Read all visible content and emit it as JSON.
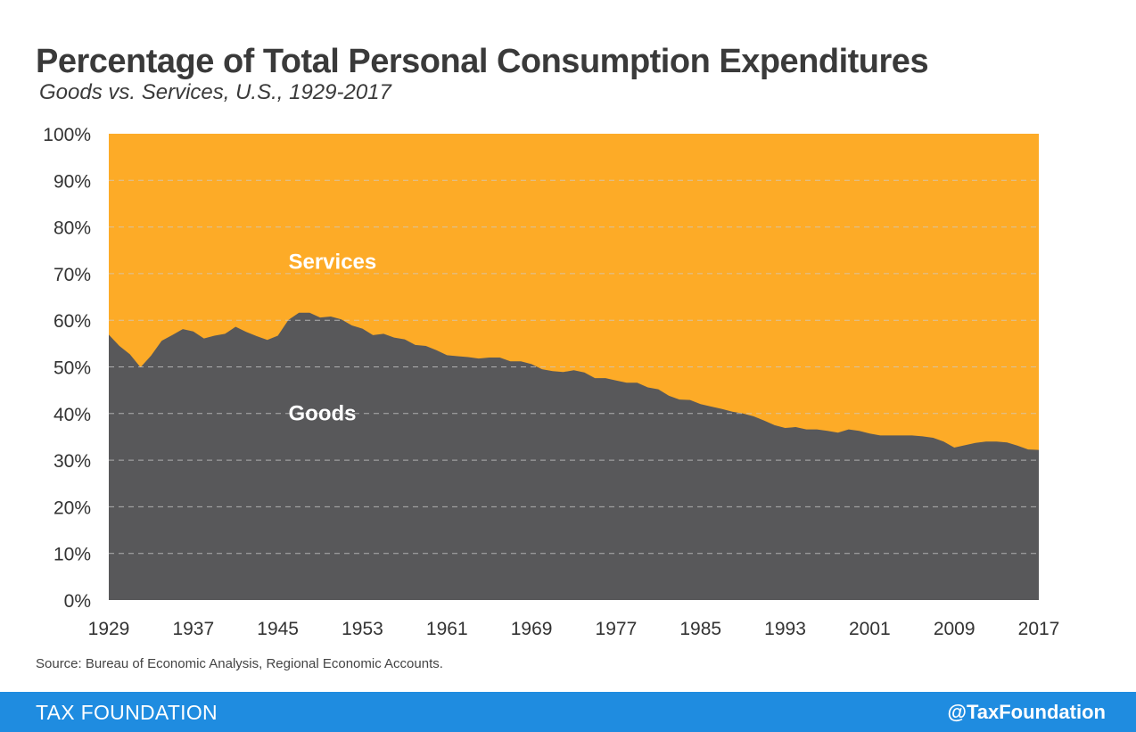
{
  "header": {
    "title": "Percentage of Total Personal Consumption Expenditures",
    "subtitle": "Goods vs. Services, U.S., 1929-2017"
  },
  "source": "Source: Bureau of Economic Analysis, Regional Economic Accounts.",
  "footer": {
    "brand": "TAX FOUNDATION",
    "handle": "@TaxFoundation",
    "background_color": "#1f8ce0"
  },
  "chart_data": {
    "type": "area",
    "stacked": true,
    "ylim": [
      0,
      100
    ],
    "xlim": [
      1929,
      2017
    ],
    "y_ticks": [
      "0%",
      "10%",
      "20%",
      "30%",
      "40%",
      "50%",
      "60%",
      "70%",
      "80%",
      "90%",
      "100%"
    ],
    "x_ticks": [
      "1929",
      "1937",
      "1945",
      "1953",
      "1961",
      "1969",
      "1977",
      "1985",
      "1993",
      "2001",
      "2009",
      "2017"
    ],
    "grid": "horizontal dashed",
    "colors": {
      "goods": "#58585a",
      "services": "#fdab27",
      "grid": "#cccccc"
    },
    "annotations": [
      {
        "text": "Services",
        "x": 1946,
        "y": 71
      },
      {
        "text": "Goods",
        "x": 1946,
        "y": 38.5
      }
    ],
    "x": [
      1929,
      1930,
      1931,
      1932,
      1933,
      1934,
      1935,
      1936,
      1937,
      1938,
      1939,
      1940,
      1941,
      1942,
      1943,
      1944,
      1945,
      1946,
      1947,
      1948,
      1949,
      1950,
      1951,
      1952,
      1953,
      1954,
      1955,
      1956,
      1957,
      1958,
      1959,
      1960,
      1961,
      1962,
      1963,
      1964,
      1965,
      1966,
      1967,
      1968,
      1969,
      1970,
      1971,
      1972,
      1973,
      1974,
      1975,
      1976,
      1977,
      1978,
      1979,
      1980,
      1981,
      1982,
      1983,
      1984,
      1985,
      1986,
      1987,
      1988,
      1989,
      1990,
      1991,
      1992,
      1993,
      1994,
      1995,
      1996,
      1997,
      1998,
      1999,
      2000,
      2001,
      2002,
      2003,
      2004,
      2005,
      2006,
      2007,
      2008,
      2009,
      2010,
      2011,
      2012,
      2013,
      2014,
      2015,
      2016,
      2017
    ],
    "series": [
      {
        "name": "Goods",
        "values": [
          56.9,
          54.5,
          52.7,
          49.9,
          52.4,
          55.6,
          56.8,
          58.1,
          57.6,
          56.1,
          56.7,
          57.1,
          58.6,
          57.5,
          56.6,
          55.8,
          56.7,
          60.1,
          61.6,
          61.6,
          60.6,
          60.8,
          60.2,
          58.9,
          58.2,
          56.8,
          57.1,
          56.3,
          55.9,
          54.7,
          54.5,
          53.6,
          52.5,
          52.3,
          52.1,
          51.8,
          52.0,
          52.0,
          51.2,
          51.2,
          50.6,
          49.5,
          49.1,
          48.9,
          49.3,
          48.8,
          47.6,
          47.6,
          47.1,
          46.6,
          46.6,
          45.6,
          45.2,
          43.8,
          43.0,
          42.9,
          42.0,
          41.5,
          41.0,
          40.4,
          40.0,
          39.4,
          38.5,
          37.5,
          36.9,
          37.1,
          36.6,
          36.6,
          36.3,
          35.9,
          36.6,
          36.3,
          35.7,
          35.3,
          35.3,
          35.3,
          35.3,
          35.1,
          34.8,
          34.0,
          32.7,
          33.2,
          33.7,
          34.0,
          34.0,
          33.8,
          33.1,
          32.3,
          32.2
        ]
      }
    ]
  }
}
